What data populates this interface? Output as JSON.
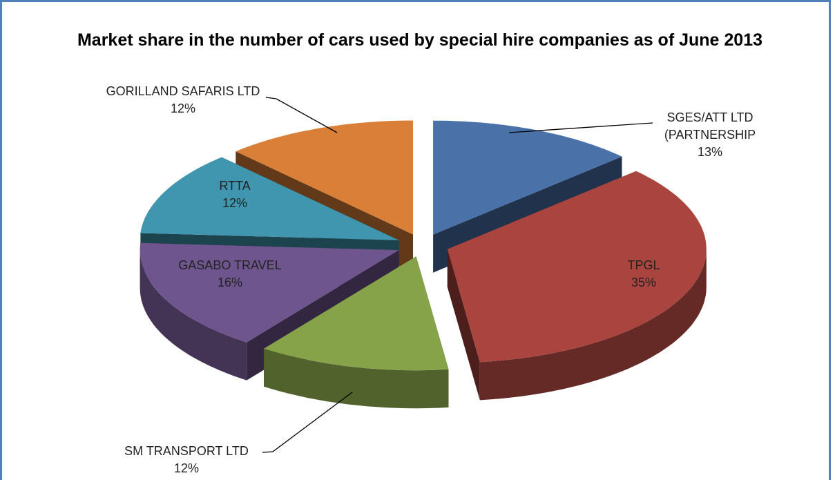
{
  "chart_data": {
    "type": "pie3d",
    "title": "Market share in the number of cars used by special hire companies as of June 2013",
    "categories": [
      "SGES/ATT LTD (PARTNERSHIP",
      "TPGL",
      "SM TRANSPORT LTD",
      "GASABO TRAVEL",
      "RTTA",
      "GORILLAND SAFARIS LTD"
    ],
    "values": [
      13,
      35,
      12,
      16,
      12,
      12
    ],
    "value_labels": [
      "13%",
      "35%",
      "12%",
      "16%",
      "12%",
      "12%"
    ],
    "colors": [
      "#4a72a8",
      "#a9443f",
      "#87a34a",
      "#6f558e",
      "#3f96ae",
      "#d97f38"
    ]
  }
}
